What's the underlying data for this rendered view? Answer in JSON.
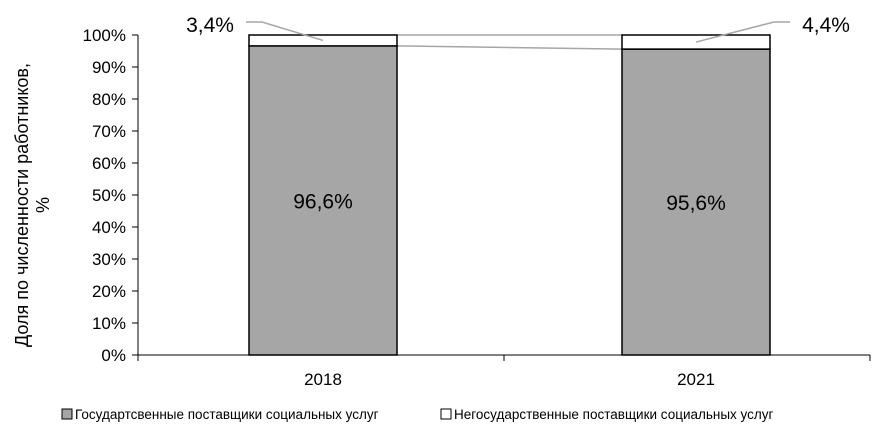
{
  "chart_data": {
    "type": "bar",
    "stacked": true,
    "categories": [
      "2018",
      "2021"
    ],
    "series": [
      {
        "name": "Государтсвенные поставщики социальных услуг",
        "values": [
          96.6,
          95.6
        ],
        "labels": [
          "96,6%",
          "95,6%"
        ],
        "color": "#a6a6a6"
      },
      {
        "name": "Негосударственные поставщики социальных услуг",
        "values": [
          3.4,
          4.4
        ],
        "labels": [
          "3,4%",
          "4,4%"
        ],
        "color": "#ffffff"
      }
    ],
    "title": "",
    "xlabel": "",
    "ylabel": "Доля по численности работников, %",
    "ylabel_lines": [
      "Доля по численности работников,",
      "%"
    ],
    "ylim": [
      0,
      100
    ],
    "yticks": [
      0,
      10,
      20,
      30,
      40,
      50,
      60,
      70,
      80,
      90,
      100
    ],
    "ytick_labels": [
      "0%",
      "10%",
      "20%",
      "30%",
      "40%",
      "50%",
      "60%",
      "70%",
      "80%",
      "90%",
      "100%"
    ],
    "grid": false,
    "legend_position": "bottom",
    "series_lines": true
  }
}
